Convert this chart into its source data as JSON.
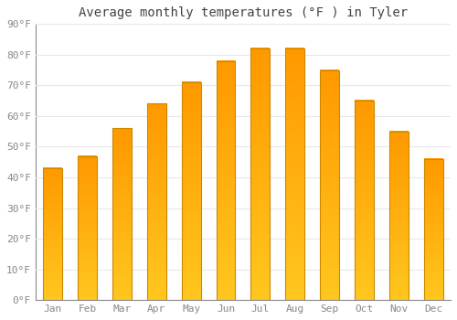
{
  "title": "Average monthly temperatures (°F ) in Tyler",
  "months": [
    "Jan",
    "Feb",
    "Mar",
    "Apr",
    "May",
    "Jun",
    "Jul",
    "Aug",
    "Sep",
    "Oct",
    "Nov",
    "Dec"
  ],
  "temps": [
    43,
    47,
    56,
    64,
    71,
    78,
    82,
    82,
    75,
    65,
    55,
    46
  ],
  "bar_color_bottom": "#FFB300",
  "bar_color_top": "#FFA500",
  "bar_edge_color": "#CC8800",
  "ylim": [
    0,
    90
  ],
  "yticks": [
    0,
    10,
    20,
    30,
    40,
    50,
    60,
    70,
    80,
    90
  ],
  "ytick_labels": [
    "0°F",
    "10°F",
    "20°F",
    "30°F",
    "40°F",
    "50°F",
    "60°F",
    "70°F",
    "80°F",
    "90°F"
  ],
  "bg_color": "#ffffff",
  "grid_color": "#e8e8e8",
  "title_fontsize": 10,
  "tick_fontsize": 8,
  "tick_color": "#888888",
  "spine_color": "#888888"
}
